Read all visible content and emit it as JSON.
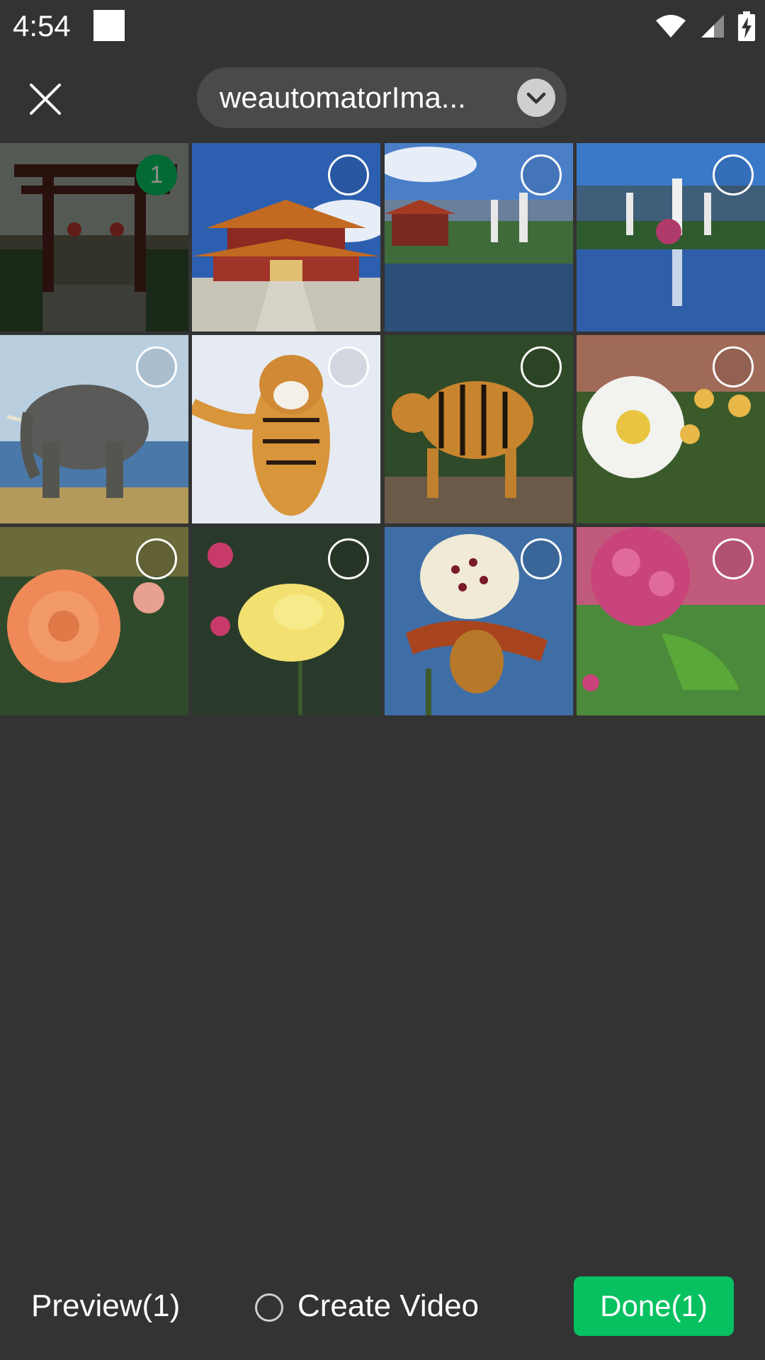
{
  "status_bar": {
    "time": "4:54"
  },
  "header": {
    "album_name": "weautomatorIma...",
    "icons": {
      "close": "close-icon",
      "dropdown": "chevron-down-icon"
    }
  },
  "grid": {
    "photos": [
      {
        "subject": "temple-gate",
        "selected": true,
        "order": "1"
      },
      {
        "subject": "pagoda-temple",
        "selected": false
      },
      {
        "subject": "lake-pavilion",
        "selected": false
      },
      {
        "subject": "three-pagodas-lake",
        "selected": false
      },
      {
        "subject": "elephant",
        "selected": false
      },
      {
        "subject": "tiger-snow",
        "selected": false
      },
      {
        "subject": "tiger-walking",
        "selected": false
      },
      {
        "subject": "white-rose",
        "selected": false
      },
      {
        "subject": "orange-rose",
        "selected": false
      },
      {
        "subject": "yellow-rose",
        "selected": false
      },
      {
        "subject": "orchid",
        "selected": false
      },
      {
        "subject": "pink-flowers",
        "selected": false
      }
    ]
  },
  "bottom_bar": {
    "preview_label": "Preview(1)",
    "create_video_label": "Create Video",
    "done_label": "Done(1)"
  },
  "colors": {
    "accent": "#07c160",
    "background": "#333333"
  }
}
